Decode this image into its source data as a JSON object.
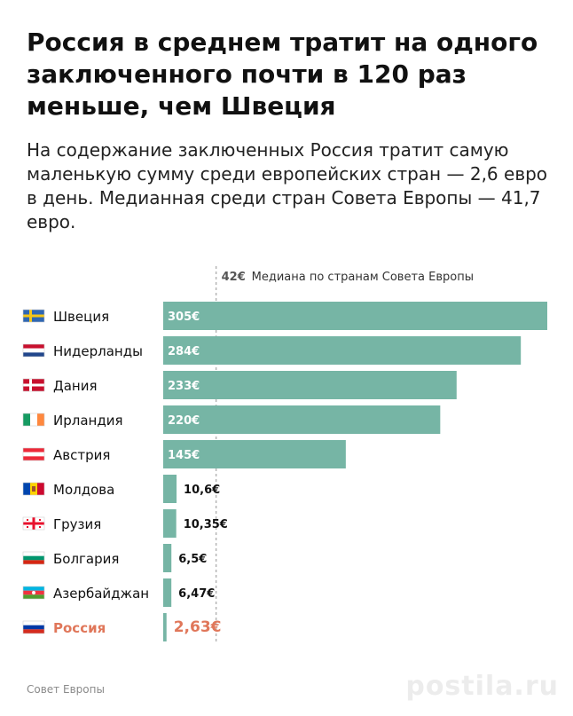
{
  "title": "Россия в среднем тратит на одного заключенного почти в 120 раз меньше, чем Швеция",
  "subtitle": "На содержание заключенных Россия тратит самую маленькую сумму среди европейских стран — 2,6 евро в день. Медианная среди стран Совета Европы — 41,7 евро.",
  "source": "Совет Европы",
  "watermark": "postila.ru",
  "colors": {
    "bar": "#76b5a5",
    "highlight": "#e0775a",
    "median_line": "#b5b5b5",
    "text": "#111111"
  },
  "chart_data": {
    "type": "bar",
    "orientation": "horizontal",
    "unit": "€",
    "median": {
      "value": 42,
      "label": "42€",
      "text": "Медиана по странам Совета Европы"
    },
    "categories": [
      "Швеция",
      "Нидерланды",
      "Дания",
      "Ирландия",
      "Австрия",
      "Молдова",
      "Грузия",
      "Болгария",
      "Азербайджан",
      "Россия"
    ],
    "values": [
      305,
      284,
      233,
      220,
      145,
      10.6,
      10.35,
      6.5,
      6.47,
      2.63
    ],
    "value_labels": [
      "305€",
      "284€",
      "233€",
      "220€",
      "145€",
      "10,6€",
      "10,35€",
      "6,5€",
      "6,47€",
      "2,63€"
    ],
    "flags": [
      "sweden-flag-icon",
      "netherlands-flag-icon",
      "denmark-flag-icon",
      "ireland-flag-icon",
      "austria-flag-icon",
      "moldova-flag-icon",
      "georgia-flag-icon",
      "bulgaria-flag-icon",
      "azerbaijan-flag-icon",
      "russia-flag-icon"
    ],
    "highlight": "Россия",
    "xlim": [
      0,
      305
    ],
    "grid": false
  }
}
